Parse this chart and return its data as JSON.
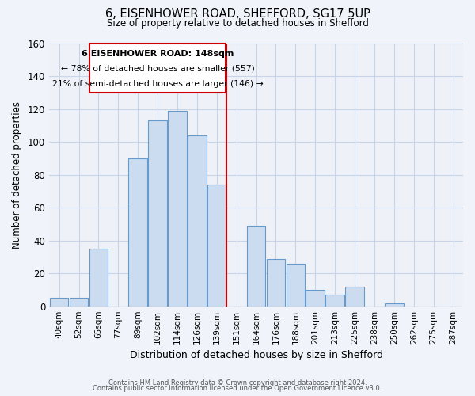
{
  "title": "6, EISENHOWER ROAD, SHEFFORD, SG17 5UP",
  "subtitle": "Size of property relative to detached houses in Shefford",
  "xlabel": "Distribution of detached houses by size in Shefford",
  "ylabel": "Number of detached properties",
  "bar_labels": [
    "40sqm",
    "52sqm",
    "65sqm",
    "77sqm",
    "89sqm",
    "102sqm",
    "114sqm",
    "126sqm",
    "139sqm",
    "151sqm",
    "164sqm",
    "176sqm",
    "188sqm",
    "201sqm",
    "213sqm",
    "225sqm",
    "238sqm",
    "250sqm",
    "262sqm",
    "275sqm",
    "287sqm"
  ],
  "bar_values": [
    5,
    5,
    35,
    0,
    90,
    113,
    119,
    104,
    74,
    0,
    49,
    29,
    26,
    10,
    7,
    12,
    0,
    2,
    0,
    0,
    0
  ],
  "bar_color": "#ccdcf0",
  "bar_edge_color": "#6699cc",
  "vline_color": "#cc0000",
  "annotation_title": "6 EISENHOWER ROAD: 148sqm",
  "annotation_line1": "← 78% of detached houses are smaller (557)",
  "annotation_line2": "21% of semi-detached houses are larger (146) →",
  "annotation_box_edge": "#cc0000",
  "ylim": [
    0,
    160
  ],
  "yticks": [
    0,
    20,
    40,
    60,
    80,
    100,
    120,
    140,
    160
  ],
  "footer1": "Contains HM Land Registry data © Crown copyright and database right 2024.",
  "footer2": "Contains public sector information licensed under the Open Government Licence v3.0.",
  "bg_color": "#f0f4fa",
  "plot_bg_color": "#eef2f8",
  "grid_color": "#c8d4e8"
}
